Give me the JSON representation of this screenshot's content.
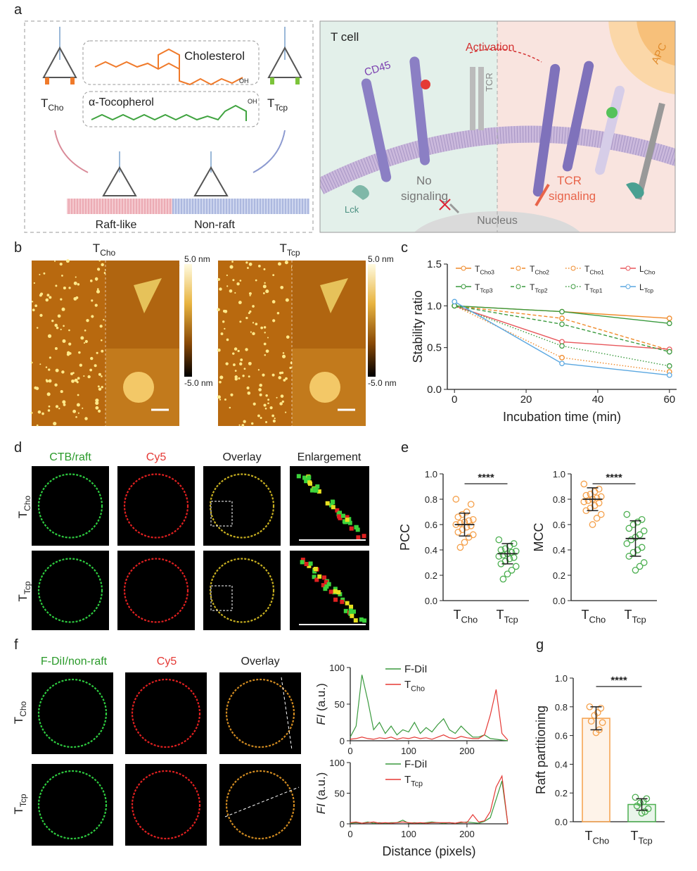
{
  "panel_labels": [
    "a",
    "b",
    "c",
    "d",
    "e",
    "f",
    "g"
  ],
  "schematic": {
    "t_cho": {
      "base": "T",
      "sub": "Cho"
    },
    "t_tcp": {
      "base": "T",
      "sub": "Tcp"
    },
    "cholesterol": "Cholesterol",
    "tocopherol": "α-Tocopherol",
    "oh": "OH",
    "raft_like": "Raft-like",
    "non_raft": "Non-raft",
    "t_cell": "T cell",
    "cd45": "CD45",
    "tcr": "TCR",
    "activation": "Activation",
    "apc": "APC",
    "lck": "Lck",
    "no_signaling": [
      "No",
      "signaling"
    ],
    "tcr_signaling": [
      "TCR",
      "signaling"
    ],
    "nucleus": "Nucleus"
  },
  "afm": {
    "titles": [
      {
        "base": "T",
        "sub": "Cho"
      },
      {
        "base": "T",
        "sub": "Tcp"
      }
    ],
    "colorbar_max": "5.0 nm",
    "colorbar_min": "-5.0 nm"
  },
  "confocal_d": {
    "columns": [
      "CTB/raft",
      "Cy5",
      "Overlay",
      "Enlargement"
    ],
    "rows": [
      {
        "base": "T",
        "sub": "Cho"
      },
      {
        "base": "T",
        "sub": "Tcp"
      }
    ]
  },
  "confocal_f": {
    "columns": [
      "F-DiI/non-raft",
      "Cy5",
      "Overlay"
    ],
    "rows": [
      {
        "base": "T",
        "sub": "Cho"
      },
      {
        "base": "T",
        "sub": "Tcp"
      }
    ]
  },
  "chart_data": [
    {
      "type": "line",
      "xlabel": "Incubation time (min)",
      "ylabel": "Stability ratio",
      "markers": true,
      "legend": "top",
      "x": [
        0,
        30,
        60
      ],
      "xlim": [
        -2,
        62
      ],
      "xticks": [
        0,
        20,
        40,
        60
      ],
      "ylim": [
        0,
        1.5
      ],
      "yticks": [
        {
          "value": 0,
          "label": "0.0"
        },
        0.5,
        {
          "value": 1,
          "label": "1.0"
        },
        1.5
      ],
      "series": [
        {
          "name": "T",
          "name_sub": "Cho3",
          "color": "#f08a2a",
          "dash": "solid",
          "values": [
            1.0,
            0.93,
            0.85
          ]
        },
        {
          "name": "T",
          "name_sub": "Cho2",
          "color": "#f08a2a",
          "dash": "dashed",
          "values": [
            1.0,
            0.85,
            0.47
          ]
        },
        {
          "name": "T",
          "name_sub": "Cho1",
          "color": "#f08a2a",
          "dash": "dotted",
          "values": [
            1.0,
            0.38,
            0.21
          ]
        },
        {
          "name": "L",
          "name_sub": "Cho",
          "color": "#e8575c",
          "dash": "solid",
          "values": [
            1.0,
            0.57,
            0.48
          ]
        },
        {
          "name": "T",
          "name_sub": "Tcp3",
          "color": "#3a9a3e",
          "dash": "solid",
          "values": [
            1.0,
            0.93,
            0.79
          ]
        },
        {
          "name": "T",
          "name_sub": "Tcp2",
          "color": "#3a9a3e",
          "dash": "dashed",
          "values": [
            1.0,
            0.78,
            0.45
          ]
        },
        {
          "name": "T",
          "name_sub": "Tcp1",
          "color": "#3a9a3e",
          "dash": "dotted",
          "values": [
            1.0,
            0.52,
            0.28
          ]
        },
        {
          "name": "L",
          "name_sub": "Tcp",
          "color": "#5aa7e0",
          "dash": "solid",
          "values": [
            1.05,
            0.31,
            0.17
          ]
        }
      ]
    },
    {
      "type": "dot",
      "ylabel": "PCC",
      "annotation": "****",
      "categories": [
        "T",
        "T"
      ],
      "category_subs": [
        "Cho",
        "Tcp"
      ],
      "colors": [
        "#f5a04a",
        "#4caf50"
      ],
      "ylim": [
        0,
        1
      ],
      "yticks": [
        {
          "value": 0,
          "label": "0.0"
        },
        0.2,
        0.4,
        0.6,
        0.8,
        {
          "value": 1,
          "label": "1.0"
        }
      ],
      "values": [
        [
          0.8,
          0.76,
          0.7,
          0.68,
          0.66,
          0.64,
          0.63,
          0.62,
          0.61,
          0.6,
          0.59,
          0.58,
          0.56,
          0.54,
          0.52,
          0.5,
          0.46,
          0.42
        ],
        [
          0.48,
          0.45,
          0.43,
          0.41,
          0.4,
          0.39,
          0.38,
          0.37,
          0.36,
          0.35,
          0.34,
          0.33,
          0.31,
          0.29,
          0.27,
          0.24,
          0.21,
          0.17
        ]
      ],
      "means": [
        0.6,
        0.37
      ],
      "sds": [
        0.09,
        0.08
      ]
    },
    {
      "type": "dot",
      "ylabel": "MCC",
      "annotation": "****",
      "categories": [
        "T",
        "T"
      ],
      "category_subs": [
        "Cho",
        "Tcp"
      ],
      "colors": [
        "#f5a04a",
        "#4caf50"
      ],
      "ylim": [
        0,
        1
      ],
      "yticks": [
        {
          "value": 0,
          "label": "0.0"
        },
        0.2,
        0.4,
        0.6,
        0.8,
        {
          "value": 1,
          "label": "1.0"
        }
      ],
      "values": [
        [
          0.92,
          0.88,
          0.86,
          0.84,
          0.83,
          0.82,
          0.81,
          0.8,
          0.79,
          0.78,
          0.77,
          0.75,
          0.73,
          0.71,
          0.68,
          0.65,
          0.6
        ],
        [
          0.68,
          0.64,
          0.62,
          0.6,
          0.57,
          0.55,
          0.52,
          0.5,
          0.48,
          0.45,
          0.42,
          0.4,
          0.38,
          0.35,
          0.3,
          0.27,
          0.24
        ]
      ],
      "means": [
        0.8,
        0.49
      ],
      "sds": [
        0.09,
        0.14
      ]
    },
    {
      "type": "line",
      "ylabel_italic": "FI",
      "ylabel": "(a.u.)",
      "markers": false,
      "legend": "upper center",
      "x": [
        0,
        10,
        20,
        30,
        40,
        50,
        60,
        70,
        80,
        90,
        100,
        110,
        120,
        130,
        140,
        150,
        160,
        170,
        180,
        190,
        200,
        210,
        220,
        230,
        240,
        250,
        260,
        270
      ],
      "xlim": [
        0,
        270
      ],
      "xticks": [
        0,
        100,
        200
      ],
      "ylim": [
        0,
        100
      ],
      "yticks": [
        0,
        50,
        100
      ],
      "series": [
        {
          "name": "F-DiI",
          "color": "#3a9a3e",
          "values": [
            5,
            20,
            90,
            55,
            15,
            25,
            10,
            20,
            8,
            15,
            12,
            25,
            10,
            18,
            12,
            22,
            30,
            15,
            10,
            20,
            12,
            5,
            5,
            8,
            3,
            2,
            1,
            0
          ]
        },
        {
          "name": "T",
          "name_sub": "Cho",
          "color": "#e53935",
          "values": [
            2,
            3,
            5,
            3,
            2,
            4,
            3,
            5,
            2,
            4,
            3,
            5,
            3,
            4,
            2,
            5,
            8,
            4,
            3,
            6,
            4,
            3,
            3,
            8,
            35,
            70,
            10,
            1
          ]
        }
      ]
    },
    {
      "type": "line",
      "xlabel": "Distance (pixels)",
      "ylabel_italic": "FI",
      "ylabel": "(a.u.)",
      "markers": false,
      "legend": "upper center",
      "x": [
        0,
        10,
        20,
        30,
        40,
        50,
        60,
        70,
        80,
        90,
        100,
        110,
        120,
        130,
        140,
        150,
        160,
        170,
        180,
        190,
        200,
        210,
        220,
        230,
        240,
        250,
        260,
        270
      ],
      "xlim": [
        0,
        270
      ],
      "xticks": [
        0,
        100,
        200
      ],
      "ylim": [
        0,
        100
      ],
      "yticks": [
        0,
        50,
        100
      ],
      "series": [
        {
          "name": "F-DiI",
          "color": "#3a9a3e",
          "values": [
            1,
            2,
            1,
            3,
            1,
            2,
            1,
            2,
            2,
            6,
            1,
            2,
            1,
            2,
            3,
            2,
            1,
            2,
            1,
            2,
            3,
            2,
            1,
            4,
            10,
            40,
            70,
            0
          ]
        },
        {
          "name": "T",
          "name_sub": "Tcp",
          "color": "#e53935",
          "values": [
            2,
            3,
            1,
            2,
            3,
            1,
            2,
            1,
            2,
            3,
            2,
            1,
            2,
            1,
            2,
            2,
            2,
            2,
            1,
            3,
            2,
            15,
            3,
            5,
            20,
            60,
            78,
            0
          ]
        }
      ]
    },
    {
      "type": "bar",
      "ylabel": "Raft partitioning",
      "annotation": "****",
      "categories": [
        "T",
        "T"
      ],
      "category_subs": [
        "Cho",
        "Tcp"
      ],
      "colors": [
        "#f5a04a",
        "#4caf50"
      ],
      "ylim": [
        0,
        1
      ],
      "yticks": [
        {
          "value": 0,
          "label": "0.0"
        },
        0.2,
        0.4,
        0.6,
        0.8,
        {
          "value": 1,
          "label": "1.0"
        }
      ],
      "values": [
        [
          0.8,
          0.79,
          0.76,
          0.74,
          0.7,
          0.69,
          0.64,
          0.62
        ],
        [
          0.17,
          0.16,
          0.14,
          0.13,
          0.11,
          0.09,
          0.07,
          0.06
        ]
      ],
      "means": [
        0.72,
        0.12
      ],
      "sds": [
        0.08,
        0.04
      ]
    }
  ]
}
